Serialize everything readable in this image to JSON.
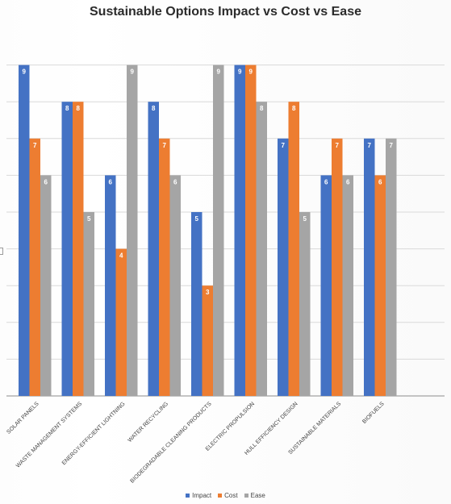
{
  "chart_data": {
    "type": "bar",
    "title": "Sustainable Options Impact vs Cost vs Ease",
    "categories": [
      "SOLAR PANELS",
      "WASTE MANAGEMENT SYSTEMS",
      "ENERGY-EFFICIENT LIGHTNING",
      "WATER RECYCLING",
      "BIODEGRADABLE CLEANING PRODUCTS",
      "ELECTRIC PROPULSION",
      "HULL EFFICIENCY DESIGN",
      "SUSTAINABLE MATERIALS",
      "BIOFUELS"
    ],
    "series": [
      {
        "name": "Impact",
        "color": "#4472c4",
        "values": [
          9,
          8,
          6,
          8,
          5,
          9,
          7,
          6,
          7
        ]
      },
      {
        "name": "Cost",
        "color": "#ed7d31",
        "values": [
          7,
          8,
          4,
          7,
          3,
          9,
          8,
          7,
          6
        ]
      },
      {
        "name": "Ease",
        "color": "#a5a5a5",
        "values": [
          6,
          5,
          9,
          6,
          9,
          8,
          5,
          6,
          7
        ]
      }
    ],
    "ylim": [
      0,
      9
    ],
    "grid": true,
    "data_labels": true,
    "legend_position": "bottom"
  }
}
